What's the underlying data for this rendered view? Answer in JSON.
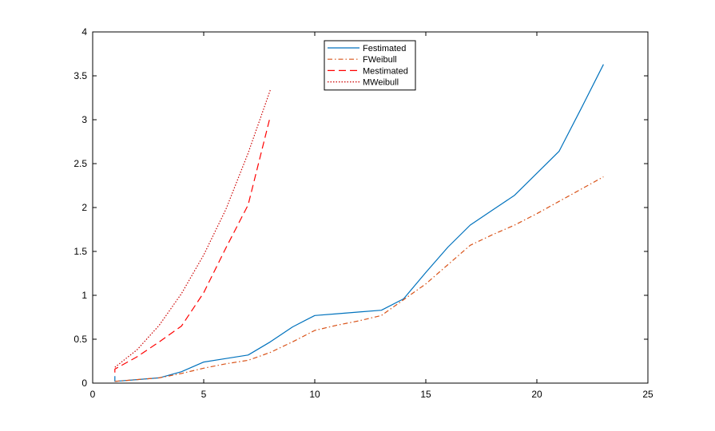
{
  "chart_data": {
    "type": "line",
    "title": "",
    "xlabel": "",
    "ylabel": "",
    "xlim": [
      0,
      25
    ],
    "ylim": [
      0,
      4
    ],
    "xticks": [
      0,
      5,
      10,
      15,
      20,
      25
    ],
    "yticks": [
      0,
      0.5,
      1,
      1.5,
      2,
      2.5,
      3,
      3.5,
      4
    ],
    "xtick_labels": [
      "0",
      "5",
      "10",
      "15",
      "20",
      "25"
    ],
    "ytick_labels": [
      "0",
      "0.5",
      "1",
      "1.5",
      "2",
      "2.5",
      "3",
      "3.5",
      "4"
    ],
    "grid": false,
    "legend_position": "top-center",
    "series": [
      {
        "name": "Festimated",
        "color": "#0072BD",
        "style": "solid",
        "x": [
          1,
          1,
          2,
          3,
          4,
          5,
          6,
          7,
          8,
          9,
          10,
          11,
          12,
          13,
          14,
          15,
          16,
          17,
          18,
          19,
          20,
          21,
          22,
          23
        ],
        "y": [
          0.08,
          0.02,
          0.04,
          0.06,
          0.13,
          0.24,
          0.28,
          0.32,
          0.47,
          0.64,
          0.77,
          0.79,
          0.81,
          0.83,
          0.96,
          1.26,
          1.55,
          1.8,
          1.97,
          2.14,
          2.39,
          2.64,
          3.13,
          3.63
        ]
      },
      {
        "name": "FWeibull",
        "color": "#D95319",
        "style": "dashdot",
        "x": [
          1,
          2,
          3,
          4,
          5,
          6,
          7,
          8,
          9,
          10,
          11,
          12,
          13,
          14,
          15,
          16,
          17,
          18,
          19,
          20,
          21,
          22,
          23
        ],
        "y": [
          0.02,
          0.04,
          0.06,
          0.11,
          0.17,
          0.22,
          0.26,
          0.35,
          0.47,
          0.6,
          0.66,
          0.71,
          0.77,
          0.95,
          1.13,
          1.35,
          1.57,
          1.69,
          1.8,
          1.93,
          2.07,
          2.21,
          2.35
        ]
      },
      {
        "name": "Mestimated",
        "color": "#FF0000",
        "style": "dashed",
        "x": [
          1,
          1,
          2,
          3,
          4,
          5,
          6,
          7,
          8
        ],
        "y": [
          0.12,
          0.16,
          0.3,
          0.47,
          0.65,
          1.03,
          1.54,
          2.03,
          3.04
        ]
      },
      {
        "name": "MWeibull",
        "color": "#CC0000",
        "style": "dotted",
        "x": [
          1,
          2,
          3,
          4,
          5,
          6,
          7,
          8
        ],
        "y": [
          0.18,
          0.38,
          0.66,
          1.02,
          1.46,
          1.98,
          2.62,
          3.34
        ]
      }
    ]
  }
}
